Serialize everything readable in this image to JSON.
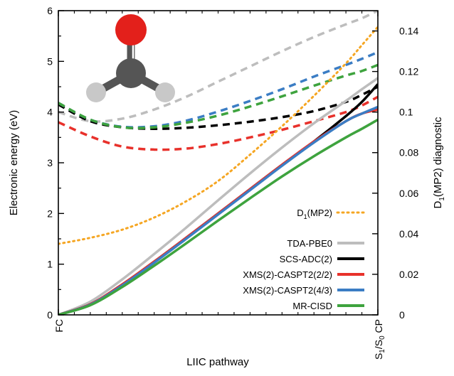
{
  "chart_data": {
    "type": "line",
    "xlabel": "LIIC pathway",
    "x_ticks": [
      "FC",
      "S1/S0 CP"
    ],
    "x_tick_parts": {
      "start": "FC",
      "end_s1": "S",
      "end_s1_sub": "1",
      "end_slash": "/S",
      "end_s0_sub": "0",
      "end_cp": " CP"
    },
    "x_range": [
      0,
      1
    ],
    "y_left": {
      "label": "Electronic energy (eV)",
      "range": [
        0,
        6
      ],
      "ticks": [
        "0",
        "1",
        "2",
        "3",
        "4",
        "5",
        "6"
      ]
    },
    "y_right": {
      "label": "D1(MP2) diagnostic",
      "label_parts": {
        "main": "D",
        "sub": "1",
        "rest": "(MP2) diagnostic"
      },
      "range": [
        0,
        0.15
      ],
      "ticks": [
        "0",
        "0.02",
        "0.04",
        "0.06",
        "0.08",
        "0.1",
        "0.12",
        "0.14"
      ]
    },
    "x": [
      0,
      0.1,
      0.2,
      0.3,
      0.4,
      0.5,
      0.6,
      0.7,
      0.8,
      0.9,
      0.95,
      1.0
    ],
    "series": [
      {
        "name": "D1(MP2)",
        "name_parts": {
          "main": "D",
          "sub": "1",
          "rest": "(MP2)"
        },
        "axis": "right",
        "style": "dotted",
        "color": "#f5a623",
        "values": [
          0.035,
          0.038,
          0.042,
          0.048,
          0.056,
          0.066,
          0.079,
          0.093,
          0.108,
          0.124,
          0.133,
          0.142
        ]
      },
      {
        "name": "TDA-PBE0",
        "role": "S1",
        "axis": "left",
        "style": "solid",
        "color": "#bdbdbd",
        "values": [
          0,
          0.26,
          0.7,
          1.2,
          1.72,
          2.26,
          2.79,
          3.3,
          3.78,
          4.22,
          4.45,
          4.67
        ]
      },
      {
        "name": "SCS-ADC(2)",
        "role": "S1",
        "axis": "left",
        "style": "solid",
        "color": "#000000",
        "values": [
          0,
          0.21,
          0.6,
          1.05,
          1.52,
          2.0,
          2.48,
          2.96,
          3.42,
          3.92,
          4.2,
          4.55
        ]
      },
      {
        "name": "XMS(2)-CASPT2(2/2)",
        "role": "S1",
        "axis": "left",
        "style": "solid",
        "color": "#e8312b",
        "values": [
          0,
          0.21,
          0.6,
          1.05,
          1.52,
          2.0,
          2.48,
          2.96,
          3.42,
          3.82,
          3.97,
          4.05
        ]
      },
      {
        "name": "XMS(2)-CASPT2(4/3)",
        "role": "S1",
        "axis": "left",
        "style": "solid",
        "color": "#3b7dc4",
        "values": [
          0,
          0.2,
          0.58,
          1.03,
          1.5,
          1.98,
          2.46,
          2.94,
          3.4,
          3.82,
          3.97,
          4.1
        ]
      },
      {
        "name": "MR-CISD",
        "role": "S1",
        "axis": "left",
        "style": "solid",
        "color": "#3ea33e",
        "values": [
          0,
          0.19,
          0.55,
          0.97,
          1.41,
          1.86,
          2.3,
          2.73,
          3.13,
          3.5,
          3.67,
          3.85
        ]
      },
      {
        "name": "TDA-PBE0",
        "role": "T1",
        "axis": "left",
        "style": "dashed",
        "color": "#bdbdbd",
        "values": [
          4.0,
          3.82,
          3.87,
          4.05,
          4.3,
          4.6,
          4.9,
          5.2,
          5.48,
          5.73,
          5.85,
          6.0
        ]
      },
      {
        "name": "SCS-ADC(2)",
        "role": "T1",
        "axis": "left",
        "style": "dashed",
        "color": "#000000",
        "values": [
          4.15,
          3.82,
          3.7,
          3.67,
          3.69,
          3.74,
          3.81,
          3.9,
          4.02,
          4.2,
          4.34,
          4.5
        ]
      },
      {
        "name": "XMS(2)-CASPT2(2/2)",
        "role": "T1",
        "axis": "left",
        "style": "dashed",
        "color": "#e8312b",
        "values": [
          3.8,
          3.52,
          3.32,
          3.26,
          3.28,
          3.37,
          3.5,
          3.65,
          3.82,
          4.0,
          4.13,
          4.3
        ]
      },
      {
        "name": "XMS(2)-CASPT2(4/3)",
        "role": "T1",
        "axis": "left",
        "style": "dashed",
        "color": "#3b7dc4",
        "values": [
          4.18,
          3.85,
          3.71,
          3.72,
          3.83,
          4.01,
          4.22,
          4.45,
          4.7,
          4.93,
          5.05,
          5.18
        ]
      },
      {
        "name": "MR-CISD",
        "role": "T1",
        "axis": "left",
        "style": "dashed",
        "color": "#3ea33e",
        "values": [
          4.18,
          3.85,
          3.7,
          3.7,
          3.79,
          3.93,
          4.11,
          4.31,
          4.52,
          4.72,
          4.81,
          4.93
        ]
      }
    ],
    "legend": {
      "placement": "right-center",
      "entries": [
        "D1(MP2)",
        "TDA-PBE0",
        "SCS-ADC(2)",
        "XMS(2)-CASPT2(2/2)",
        "XMS(2)-CASPT2(4/3)",
        "MR-CISD"
      ]
    },
    "inset": {
      "type": "molecule",
      "atoms": [
        {
          "element": "O",
          "color": "#e3201b"
        },
        {
          "element": "C",
          "color": "#555555"
        },
        {
          "element": "H",
          "color": "#c8c8c8"
        },
        {
          "element": "H",
          "color": "#c8c8c8"
        }
      ]
    },
    "grid": false
  }
}
